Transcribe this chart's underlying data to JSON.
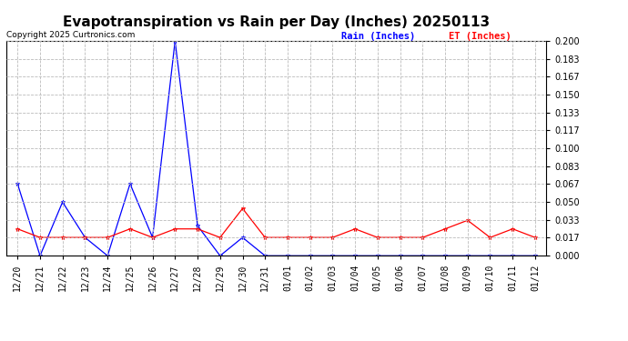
{
  "title": "Evapotranspiration vs Rain per Day (Inches) 20250113",
  "copyright_text": "Copyright 2025 Curtronics.com",
  "legend_rain": "Rain (Inches)",
  "legend_et": "ET (Inches)",
  "labels": [
    "12/20",
    "12/21",
    "12/22",
    "12/23",
    "12/24",
    "12/25",
    "12/26",
    "12/27",
    "12/28",
    "12/29",
    "12/30",
    "12/31",
    "01/01",
    "01/02",
    "01/03",
    "01/04",
    "01/05",
    "01/06",
    "01/07",
    "01/08",
    "01/09",
    "01/10",
    "01/11",
    "01/12"
  ],
  "rain": [
    0.067,
    0.0,
    0.05,
    0.017,
    0.0,
    0.067,
    0.017,
    0.2,
    0.028,
    0.0,
    0.017,
    0.0,
    0.0,
    0.0,
    0.0,
    0.0,
    0.0,
    0.0,
    0.0,
    0.0,
    0.0,
    0.0,
    0.0,
    0.0
  ],
  "et": [
    0.025,
    0.017,
    0.017,
    0.017,
    0.017,
    0.025,
    0.017,
    0.025,
    0.025,
    0.017,
    0.044,
    0.017,
    0.017,
    0.017,
    0.017,
    0.025,
    0.017,
    0.017,
    0.017,
    0.025,
    0.033,
    0.017,
    0.025,
    0.017
  ],
  "ylim": [
    0.0,
    0.2
  ],
  "yticks": [
    0.0,
    0.017,
    0.033,
    0.05,
    0.067,
    0.083,
    0.1,
    0.117,
    0.133,
    0.15,
    0.167,
    0.183,
    0.2
  ],
  "rain_color": "blue",
  "et_color": "red",
  "grid_color": "#bbbbbb",
  "bg_color": "white",
  "title_fontsize": 11,
  "tick_fontsize": 7,
  "copyright_fontsize": 6.5,
  "legend_fontsize": 7.5
}
